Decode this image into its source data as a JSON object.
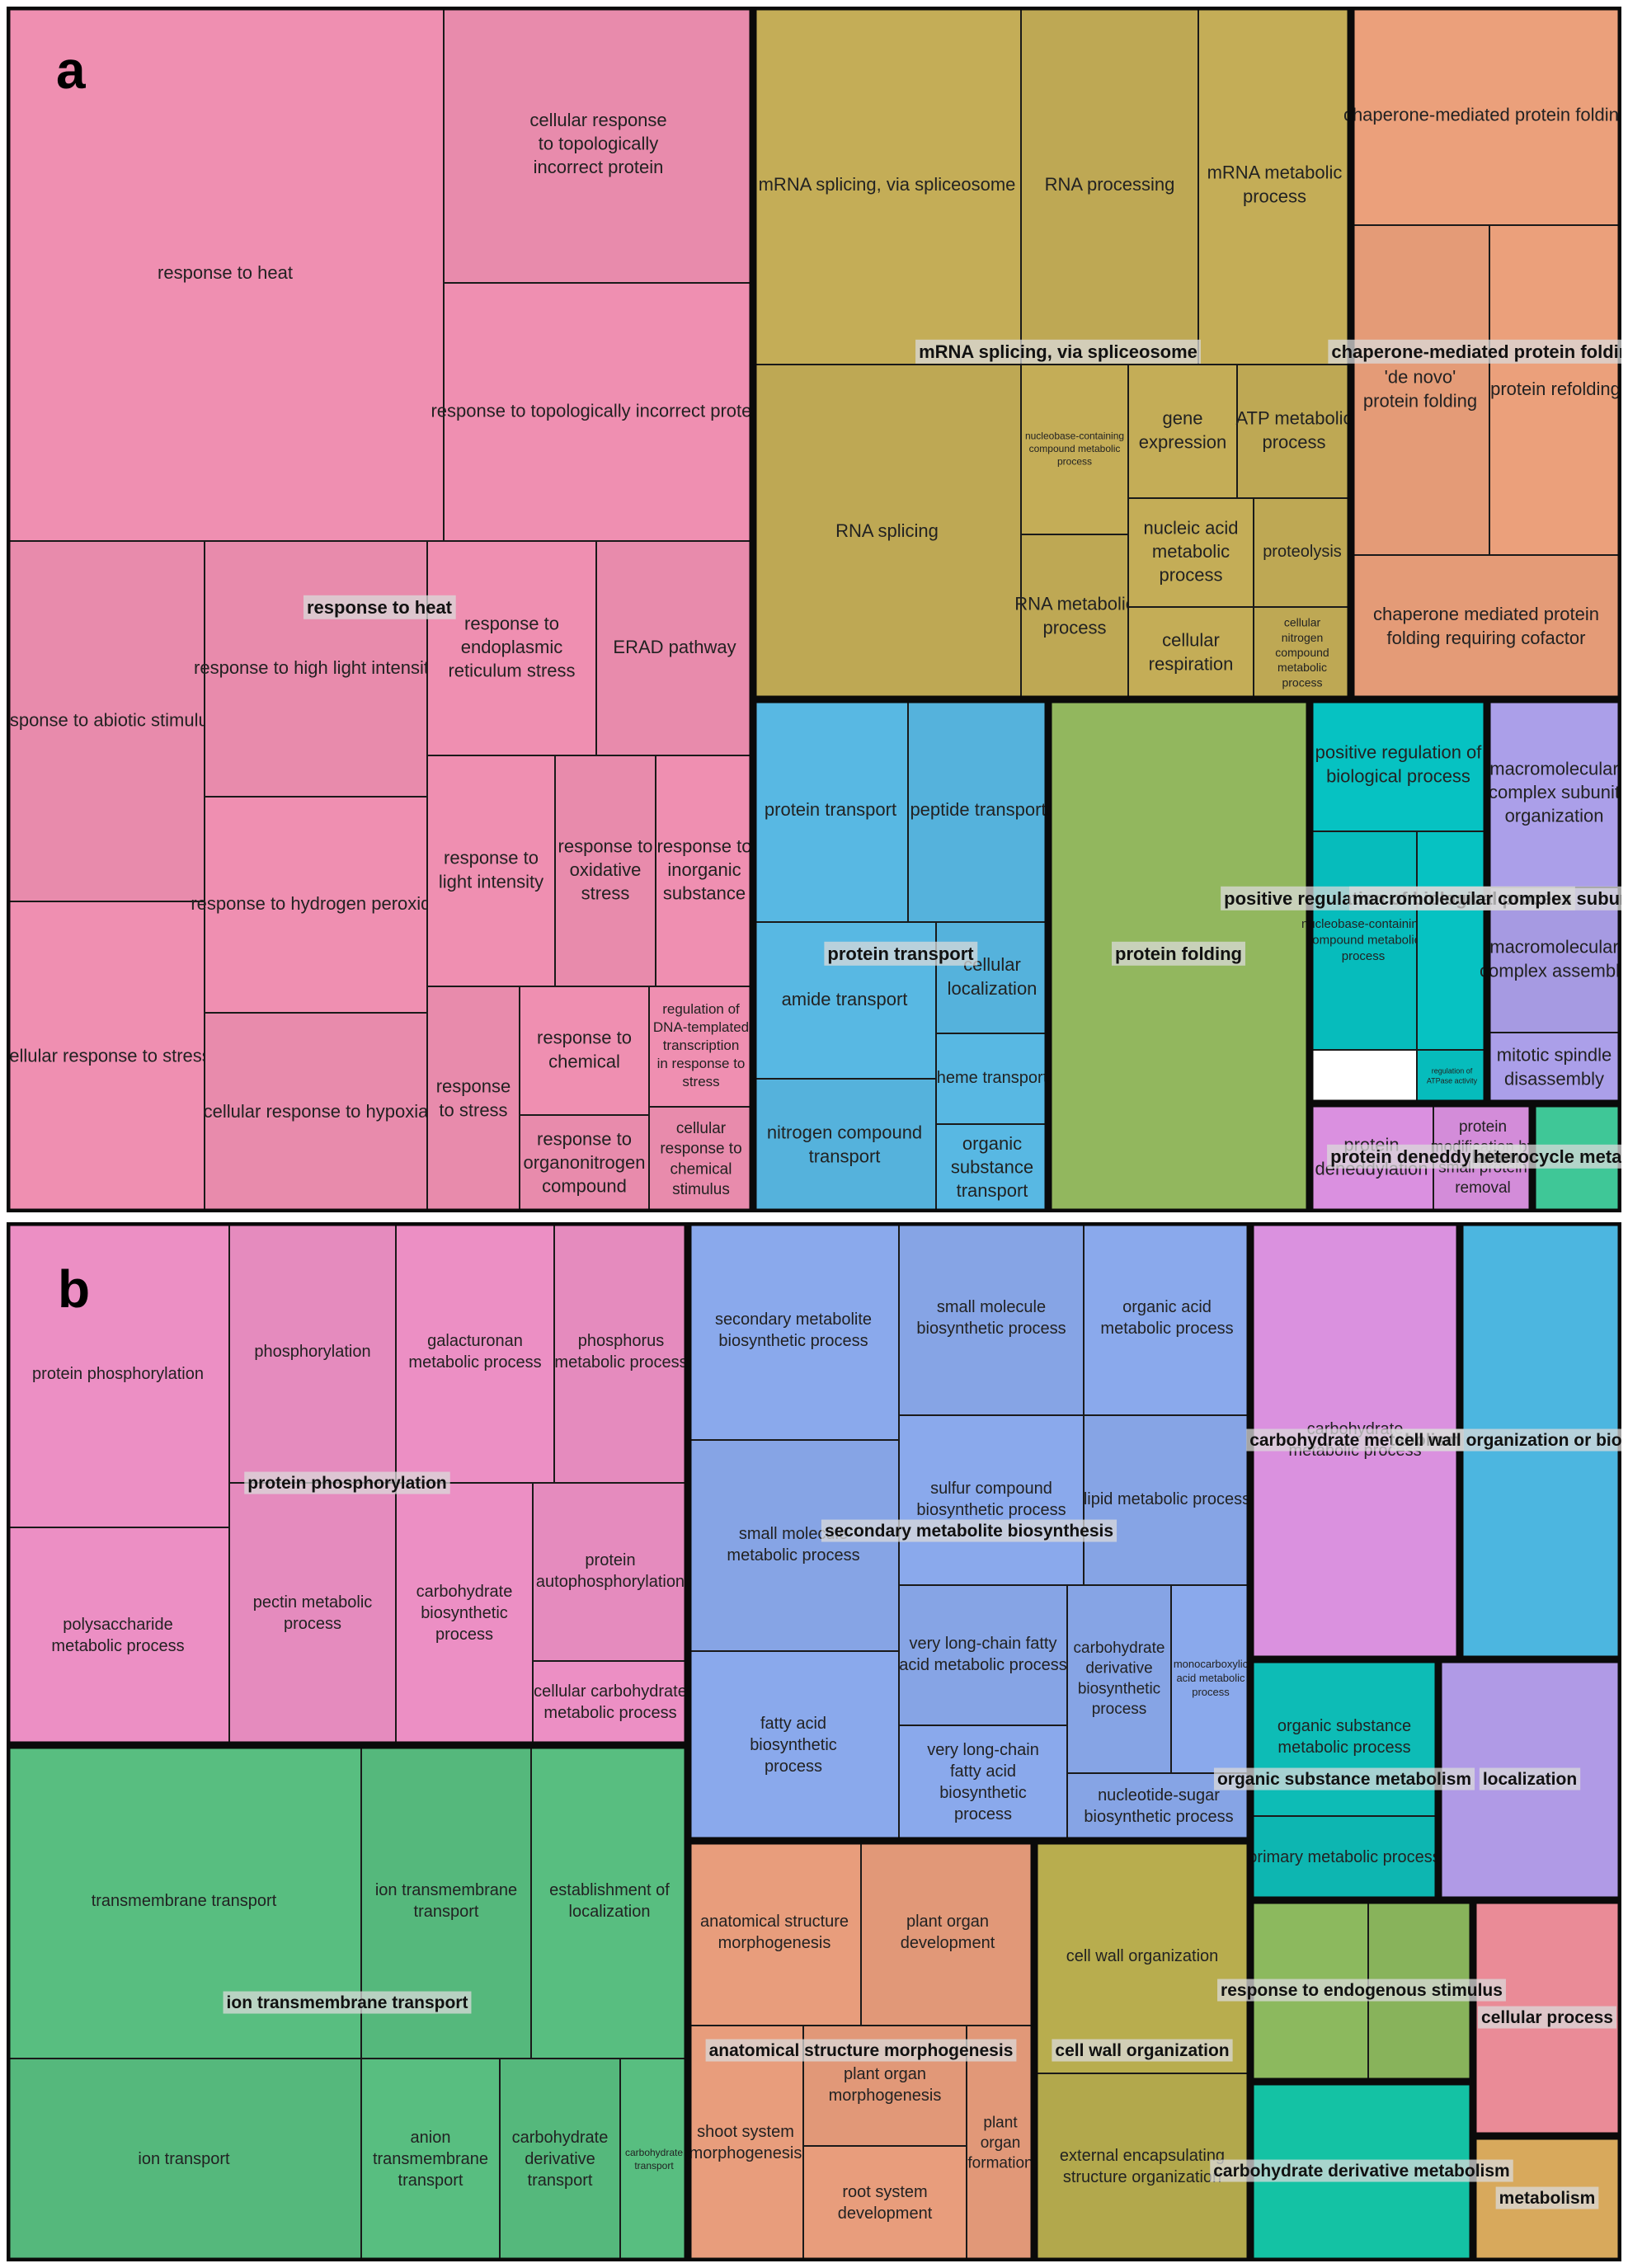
{
  "chart_data": [
    {
      "type": "treemap",
      "panel_label": "a",
      "colors": {
        "response to heat": "#ef8fb1",
        "mRNA splicing, via spliceosome": "#c4ad57",
        "chaperone-mediated protein folding": "#eba07b",
        "protein transport": "#58b8e3",
        "protein folding": "#92b75e",
        "positive regulation of biological process": "#06c2c2",
        "macromolecular complex subunit organization": "#ab9fe9",
        "protein deneddylation": "#da90e0",
        "heterocycle metabolism": "#3fc797"
      },
      "groups": [
        {
          "name": "response to heat",
          "items": [
            {
              "label": "response to heat",
              "value": 14.0
            },
            {
              "label": "cellular response\nto topologically\nincorrect protein",
              "value": 6.7
            },
            {
              "label": "response to topologically incorrect protein",
              "value": 7.2
            },
            {
              "label": "response to abiotic stimulus",
              "value": 6.0
            },
            {
              "label": "cellular response to stress",
              "value": 5.0
            },
            {
              "label": "response to high light intensity",
              "value": 3.7
            },
            {
              "label": "response to hydrogen peroxide",
              "value": 3.2
            },
            {
              "label": "cellular response to hypoxia",
              "value": 3.3
            },
            {
              "label": "response to\nendoplasmic\nreticulum stress",
              "value": 2.6
            },
            {
              "label": "ERAD pathway",
              "value": 2.4
            },
            {
              "label": "response to\nlight intensity",
              "value": 2.1
            },
            {
              "label": "response to\noxidative\nstress",
              "value": 1.7
            },
            {
              "label": "response to\ninorganic\nsubstance",
              "value": 1.6
            },
            {
              "label": "response\nto stress",
              "value": 1.2
            },
            {
              "label": "response to\nchemical",
              "value": 1.1
            },
            {
              "label": "response to\norganonitrogen\ncompound",
              "value": 1.1
            },
            {
              "label": "regulation of\nDNA-templated\ntranscription\nin response to\nstress",
              "value": 1.0
            },
            {
              "label": "cellular\nresponse to\nchemical\nstimulus",
              "value": 0.9
            }
          ]
        },
        {
          "name": "mRNA splicing, via spliceosome",
          "items": [
            {
              "label": "mRNA splicing, via spliceosome",
              "value": 5.1
            },
            {
              "label": "RNA processing",
              "value": 3.3
            },
            {
              "label": "mRNA metabolic\nprocess",
              "value": 2.9
            },
            {
              "label": "RNA splicing",
              "value": 5.4
            },
            {
              "label": "nucleobase-containing\ncompound metabolic\nprocess",
              "value": 1.0
            },
            {
              "label": "RNA metabolic\nprocess",
              "value": 1.2
            },
            {
              "label": "gene\nexpression",
              "value": 0.9
            },
            {
              "label": "ATP metabolic\nprocess",
              "value": 1.1
            },
            {
              "label": "nucleic acid\nmetabolic\nprocess",
              "value": 0.8
            },
            {
              "label": "proteolysis",
              "value": 0.6
            },
            {
              "label": "cellular\nrespiration",
              "value": 0.6
            },
            {
              "label": "cellular\nnitrogen\ncompound\nmetabolic\nprocess",
              "value": 0.6
            }
          ]
        },
        {
          "name": "chaperone-mediated protein folding",
          "items": [
            {
              "label": "chaperone-mediated protein folding",
              "value": 3.8
            },
            {
              "label": "'de novo'\nprotein folding",
              "value": 2.7
            },
            {
              "label": "protein refolding",
              "value": 2.5
            },
            {
              "label": "chaperone mediated protein\nfolding requiring cofactor",
              "value": 2.4
            }
          ]
        },
        {
          "name": "protein transport",
          "items": [
            {
              "label": "protein transport",
              "value": 2.6
            },
            {
              "label": "peptide transport",
              "value": 2.3
            },
            {
              "label": "amide transport",
              "value": 2.5
            },
            {
              "label": "cellular\nlocalization",
              "value": 1.1
            },
            {
              "label": "heme transport",
              "value": 0.9
            },
            {
              "label": "nitrogen compound\ntransport",
              "value": 2.1
            },
            {
              "label": "organic\nsubstance\ntransport",
              "value": 1.1
            }
          ]
        },
        {
          "name": "protein folding",
          "items": [
            {
              "label": "",
              "value": 7.8
            }
          ]
        },
        {
          "name": "positive regulation of biological process",
          "items": [
            {
              "label": "positive regulation of\nbiological process",
              "value": 1.5
            },
            {
              "label": "nucleobase-containing\ncompound metabolic\nprocess",
              "value": 1.3
            },
            {
              "label": "",
              "value": 0.8
            },
            {
              "label": "regulation of\nATPase activity",
              "value": 0.6
            }
          ]
        },
        {
          "name": "macromolecular complex subunit organization",
          "items": [
            {
              "label": "macromolecular\ncomplex subunit\norganization",
              "value": 1.7
            },
            {
              "label": "macromolecular\ncomplex assembly",
              "value": 1.3
            },
            {
              "label": "mitotic spindle\ndisassembly",
              "value": 0.7
            }
          ]
        },
        {
          "name": "protein deneddylation",
          "items": [
            {
              "label": "protein\ndeneddylation",
              "value": 0.7
            },
            {
              "label": "protein\nmodification by\nsmall protein\nremoval",
              "value": 0.6
            }
          ]
        },
        {
          "name": "heterocycle metabolism",
          "items": [
            {
              "label": "",
              "value": 0.6
            }
          ]
        }
      ]
    },
    {
      "type": "treemap",
      "panel_label": "b",
      "colors": {
        "protein phosphorylation": "#ec8fc4",
        "secondary metabolite biosynthesis": "#8aa9ec",
        "carbohydrate metabolism": "#da91df",
        "cell wall organization or biogenesis": "#4cb6e0",
        "ion transmembrane transport": "#58be80",
        "anatomical structure morphogenesis": "#e89d7c",
        "cell wall organization": "#b8ad4e",
        "organic substance metabolism": "#0dbcb6",
        "localization": "#b09ae6",
        "response to endogenous stimulus": "#8cb95e",
        "cellular process": "#ea8b97",
        "carbohydrate derivative metabolism": "#14c2a4",
        "metabolism": "#d8a95c"
      },
      "groups": [
        {
          "name": "protein phosphorylation",
          "items": [
            {
              "label": "protein phosphorylation",
              "value": 5.6
            },
            {
              "label": "phosphorylation",
              "value": 3.6
            },
            {
              "label": "galacturonan\nmetabolic process",
              "value": 3.5
            },
            {
              "label": "phosphorus\nmetabolic process",
              "value": 3.0
            },
            {
              "label": "polysaccharide\nmetabolic process",
              "value": 3.1
            },
            {
              "label": "pectin metabolic\nprocess",
              "value": 3.3
            },
            {
              "label": "carbohydrate\nbiosynthetic\nprocess",
              "value": 2.8
            },
            {
              "label": "protein\nautophosphorylation",
              "value": 2.3
            },
            {
              "label": "cellular carbohydrate\nmetabolic process",
              "value": 1.0
            }
          ]
        },
        {
          "name": "secondary metabolite biosynthesis",
          "items": [
            {
              "label": "secondary metabolite\nbiosynthetic process",
              "value": 4.0
            },
            {
              "label": "small molecule\nbiosynthetic process",
              "value": 3.1
            },
            {
              "label": "organic acid\nmetabolic process",
              "value": 3.0
            },
            {
              "label": "small molecule\nmetabolic process",
              "value": 3.7
            },
            {
              "label": "sulfur compound\nbiosynthetic process",
              "value": 2.6
            },
            {
              "label": "lipid metabolic process",
              "value": 2.4
            },
            {
              "label": "fatty acid\nbiosynthetic\nprocess",
              "value": 3.4
            },
            {
              "label": "very long-chain fatty\nacid metabolic process",
              "value": 1.8
            },
            {
              "label": "very long-chain\nfatty acid\nbiosynthetic\nprocess",
              "value": 1.6
            },
            {
              "label": "carbohydrate\nderivative\nbiosynthetic\nprocess",
              "value": 1.5
            },
            {
              "label": "monocarboxylic\nacid metabolic\nprocess",
              "value": 0.9
            },
            {
              "label": "nucleotide-sugar\nbiosynthetic process",
              "value": 1.0
            }
          ]
        },
        {
          "name": "carbohydrate metabolism",
          "items": [
            {
              "label": "carbohydrate\nmetabolic process",
              "value": 5.1
            }
          ]
        },
        {
          "name": "cell wall organization or biogenesis",
          "items": [
            {
              "label": "",
              "value": 4.4
            }
          ]
        },
        {
          "name": "ion transmembrane transport",
          "items": [
            {
              "label": "transmembrane transport",
              "value": 6.0
            },
            {
              "label": "ion transmembrane\ntransport",
              "value": 2.6
            },
            {
              "label": "establishment of\nlocalization",
              "value": 2.3
            },
            {
              "label": "ion transport",
              "value": 3.9
            },
            {
              "label": "anion\ntransmembrane\ntransport",
              "value": 1.5
            },
            {
              "label": "carbohydrate\nderivative\ntransport",
              "value": 1.4
            },
            {
              "label": "carbohydrate\ntransport",
              "value": 0.6
            }
          ]
        },
        {
          "name": "anatomical structure morphogenesis",
          "items": [
            {
              "label": "anatomical structure\nmorphogenesis",
              "value": 2.0
            },
            {
              "label": "plant organ\ndevelopment",
              "value": 1.9
            },
            {
              "label": "shoot system\nmorphogenesis",
              "value": 1.5
            },
            {
              "label": "plant organ\nmorphogenesis",
              "value": 1.3
            },
            {
              "label": "root system\ndevelopment",
              "value": 1.2
            },
            {
              "label": "plant\norgan\nformation",
              "value": 0.6
            }
          ]
        },
        {
          "name": "cell wall organization",
          "items": [
            {
              "label": "cell wall organization",
              "value": 2.9
            },
            {
              "label": "external encapsulating\nstructure organization",
              "value": 2.4
            }
          ]
        },
        {
          "name": "organic substance metabolism",
          "items": [
            {
              "label": "organic substance\nmetabolic process",
              "value": 2.1
            },
            {
              "label": "primary metabolic process",
              "value": 1.0
            }
          ]
        },
        {
          "name": "localization",
          "items": [
            {
              "label": "",
              "value": 2.8
            }
          ]
        },
        {
          "name": "response to endogenous stimulus",
          "items": [
            {
              "label": "",
              "value": 1.2
            },
            {
              "label": "",
              "value": 1.0
            }
          ]
        },
        {
          "name": "cellular process",
          "items": [
            {
              "label": "",
              "value": 2.1
            }
          ]
        },
        {
          "name": "carbohydrate derivative metabolism",
          "items": [
            {
              "label": "",
              "value": 2.2
            }
          ]
        },
        {
          "name": "metabolism",
          "items": [
            {
              "label": "",
              "value": 1.0
            }
          ]
        }
      ]
    }
  ]
}
